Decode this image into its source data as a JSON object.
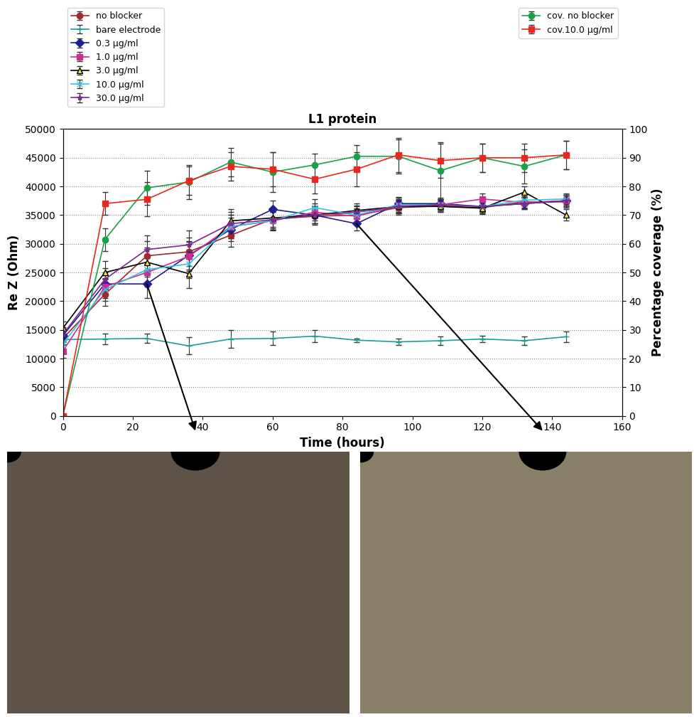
{
  "chart_data": {
    "type": "line",
    "title": "L1 protein",
    "x_label": "Time (hours)",
    "y_label": "Re Z (Ohm)",
    "y2_label": "Percentage coverage (%)",
    "x": [
      0,
      12,
      24,
      36,
      48,
      60,
      72,
      84,
      96,
      108,
      120,
      132,
      144
    ],
    "xlim": [
      0,
      160
    ],
    "xticks": [
      0,
      20,
      40,
      60,
      80,
      100,
      120,
      140,
      160
    ],
    "ylim": [
      0,
      50000
    ],
    "yticks": [
      0,
      5000,
      10000,
      15000,
      20000,
      25000,
      30000,
      35000,
      40000,
      45000,
      50000
    ],
    "y2lim": [
      0,
      100
    ],
    "y2ticks": [
      0,
      10,
      20,
      30,
      40,
      50,
      60,
      70,
      80,
      90,
      100
    ],
    "grid": true,
    "legend": "upper left",
    "series": [
      {
        "name": "no blocker",
        "color": "#a0282d",
        "marker": "circle",
        "values": [
          13500,
          21200,
          27900,
          28600,
          31500,
          34300,
          34800,
          35000,
          36300,
          36600,
          36300,
          37300,
          37300
        ],
        "errors": [
          1200,
          2000,
          2500,
          2500,
          2000,
          2000,
          1500,
          1500,
          1200,
          1000,
          1000,
          1000,
          1000
        ]
      },
      {
        "name": "bare electrode",
        "color": "#1f9a9a",
        "marker": "plus",
        "values": [
          13300,
          13400,
          13500,
          12200,
          13400,
          13500,
          13900,
          13200,
          12900,
          13100,
          13400,
          13100,
          13800
        ],
        "errors": [
          1000,
          900,
          800,
          1500,
          1500,
          1200,
          1100,
          300,
          600,
          800,
          600,
          700,
          900
        ]
      },
      {
        "name": "0.3 µg/ml",
        "color": "#1f1f8f",
        "marker": "diamond",
        "values": [
          14000,
          23000,
          23000,
          28000,
          32500,
          36000,
          35000,
          33500,
          37000,
          37000,
          36500,
          37000,
          37500
        ],
        "errors": [
          1200,
          2000,
          2500,
          2500,
          2000,
          1500,
          1500,
          1200,
          1200,
          1000,
          1000,
          1000,
          1000
        ]
      },
      {
        "name": "1.0 µg/ml",
        "color": "#cc2d8f",
        "marker": "square",
        "values": [
          11300,
          22500,
          25000,
          27800,
          33000,
          34000,
          35500,
          34800,
          36600,
          36800,
          37800,
          37200,
          37500
        ],
        "errors": [
          1200,
          2000,
          2500,
          2500,
          2000,
          1500,
          1500,
          1200,
          1200,
          1000,
          1000,
          1000,
          1000
        ]
      },
      {
        "name": "3.0 µg/ml",
        "color": "#000000",
        "marker": "triangle",
        "values": [
          15300,
          25000,
          26800,
          24800,
          34000,
          34500,
          35000,
          35800,
          36500,
          36500,
          36200,
          39000,
          35000
        ],
        "errors": [
          1200,
          2000,
          2500,
          2500,
          2000,
          1500,
          1500,
          1200,
          1200,
          1000,
          1000,
          1000,
          1000
        ]
      },
      {
        "name": "10.0 µg/ml",
        "color": "#33c3e6",
        "marker": "x",
        "values": [
          12600,
          22000,
          25500,
          26500,
          33000,
          34000,
          36300,
          35000,
          36800,
          36800,
          36500,
          37600,
          37800
        ],
        "errors": [
          1200,
          2000,
          2500,
          2500,
          2000,
          1500,
          1500,
          1200,
          1200,
          1000,
          1000,
          1000,
          1000
        ]
      },
      {
        "name": "30.0 µg/ml",
        "color": "#7a2a8a",
        "marker": "star",
        "values": [
          14200,
          23800,
          29000,
          29800,
          33500,
          34200,
          35000,
          35500,
          36500,
          36800,
          36500,
          37000,
          37500
        ],
        "errors": [
          1200,
          2000,
          2500,
          2500,
          2000,
          1500,
          1500,
          1200,
          1200,
          1000,
          1000,
          1000,
          1000
        ]
      },
      {
        "name": "cov. no blocker",
        "color": "#1aa04a",
        "marker": "circle",
        "axis": "y2",
        "values": [
          0,
          61.5,
          79.5,
          81.5,
          88.5,
          85,
          87.5,
          90.5,
          90.5,
          85.5,
          90,
          87,
          91
        ],
        "errors": [
          0,
          4,
          6,
          6,
          5,
          7,
          4,
          4,
          6,
          10,
          5,
          6,
          5
        ]
      },
      {
        "name": "cov.10.0 µg/ml",
        "color": "#e8281e",
        "marker": "square",
        "axis": "y2",
        "values": [
          0,
          74,
          75.5,
          82,
          87,
          86,
          82.5,
          86,
          91,
          89,
          90,
          90,
          91
        ],
        "errors": [
          0,
          4,
          6,
          5,
          5,
          6,
          5,
          6,
          6,
          6,
          5,
          5,
          5
        ]
      }
    ]
  }
}
